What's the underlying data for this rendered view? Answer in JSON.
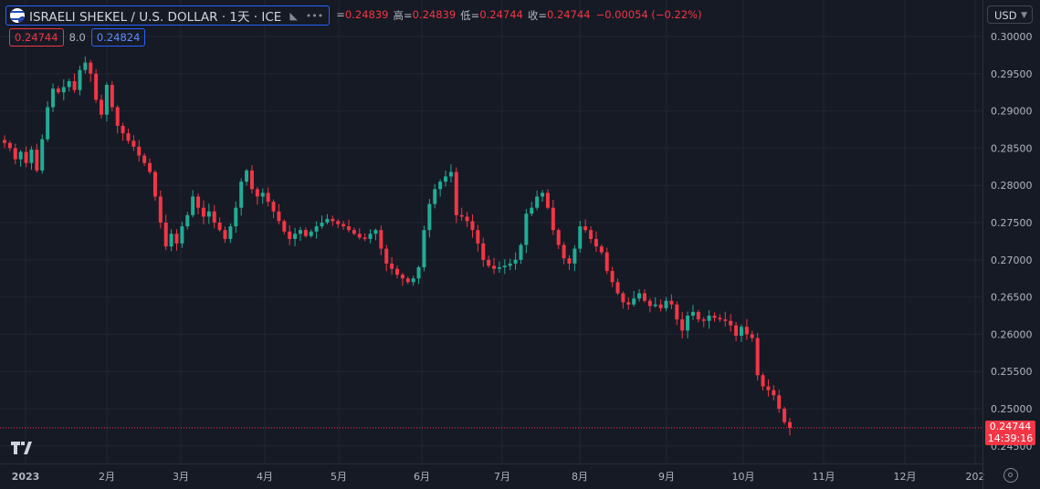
{
  "header": {
    "symbol": "ISRAELI SHEKEL / U.S. DOLLAR · 1天 · ICE",
    "open_label": "=",
    "open_value": "0.24839",
    "high_label": "高=",
    "high_value": "0.24839",
    "low_label": "低=",
    "low_value": "0.24744",
    "close_label": "收=",
    "close_value": "0.24744",
    "change": "−0.00054 (−0.22%)"
  },
  "order_row": {
    "sell": "0.24744",
    "spread": "8.0",
    "buy": "0.24824"
  },
  "currency": "USD",
  "price_tag": {
    "price": "0.24744",
    "countdown": "14:39:16"
  },
  "colors": {
    "bg": "#161a25",
    "up": "#22ab94",
    "down": "#f23645",
    "grid": "#232632",
    "text": "#b2b5be"
  },
  "icons": {
    "logo": "tradingview-logo-icon",
    "settings": "gear-icon",
    "flag": "israel-flag-icon"
  },
  "chart_data": {
    "type": "candlestick",
    "title": "ISRAELI SHEKEL / U.S. DOLLAR · 1天 · ICE",
    "ylim": [
      0.245,
      0.3015
    ],
    "y_ticks": [
      "0.30000",
      "0.29500",
      "0.29000",
      "0.28500",
      "0.28000",
      "0.27500",
      "0.27000",
      "0.26500",
      "0.26000",
      "0.25500",
      "0.25000",
      "0.24500"
    ],
    "x_ticks": [
      "2023",
      "2月",
      "3月",
      "4月",
      "5月",
      "6月",
      "7月",
      "8月",
      "9月",
      "10月",
      "11月",
      "12月",
      "202"
    ],
    "grid": true,
    "last_price": 0.24744,
    "close_path": [
      0.2857,
      0.285,
      0.2835,
      0.2845,
      0.283,
      0.2848,
      0.282,
      0.2862,
      0.2905,
      0.293,
      0.2925,
      0.2932,
      0.294,
      0.2928,
      0.2955,
      0.2965,
      0.295,
      0.2915,
      0.2895,
      0.2935,
      0.2905,
      0.288,
      0.287,
      0.286,
      0.2852,
      0.284,
      0.283,
      0.2818,
      0.2785,
      0.275,
      0.2718,
      0.2735,
      0.2722,
      0.2745,
      0.276,
      0.2785,
      0.277,
      0.2758,
      0.2765,
      0.275,
      0.274,
      0.2728,
      0.2745,
      0.277,
      0.2805,
      0.282,
      0.2795,
      0.2785,
      0.279,
      0.2778,
      0.2765,
      0.2752,
      0.2738,
      0.2728,
      0.2735,
      0.274,
      0.2732,
      0.2738,
      0.2745,
      0.275,
      0.2755,
      0.2752,
      0.2748,
      0.2745,
      0.274,
      0.2735,
      0.273,
      0.2728,
      0.2735,
      0.274,
      0.2715,
      0.2695,
      0.2688,
      0.268,
      0.2675,
      0.267,
      0.2675,
      0.269,
      0.274,
      0.2775,
      0.2795,
      0.2805,
      0.2812,
      0.2818,
      0.276,
      0.2758,
      0.2752,
      0.274,
      0.2722,
      0.27,
      0.2692,
      0.2688,
      0.269,
      0.2692,
      0.2695,
      0.27,
      0.272,
      0.2762,
      0.277,
      0.2785,
      0.279,
      0.277,
      0.274,
      0.272,
      0.2702,
      0.2695,
      0.2715,
      0.2745,
      0.274,
      0.2728,
      0.2718,
      0.271,
      0.2685,
      0.267,
      0.2655,
      0.2643,
      0.264,
      0.2648,
      0.2655,
      0.2645,
      0.2638,
      0.264,
      0.2635,
      0.2645,
      0.264,
      0.262,
      0.2605,
      0.2625,
      0.263,
      0.262,
      0.2618,
      0.2625,
      0.2622,
      0.262,
      0.2618,
      0.2612,
      0.2598,
      0.261,
      0.26,
      0.2595,
      0.2545,
      0.253,
      0.2525,
      0.2518,
      0.25,
      0.2482,
      0.24744
    ]
  }
}
